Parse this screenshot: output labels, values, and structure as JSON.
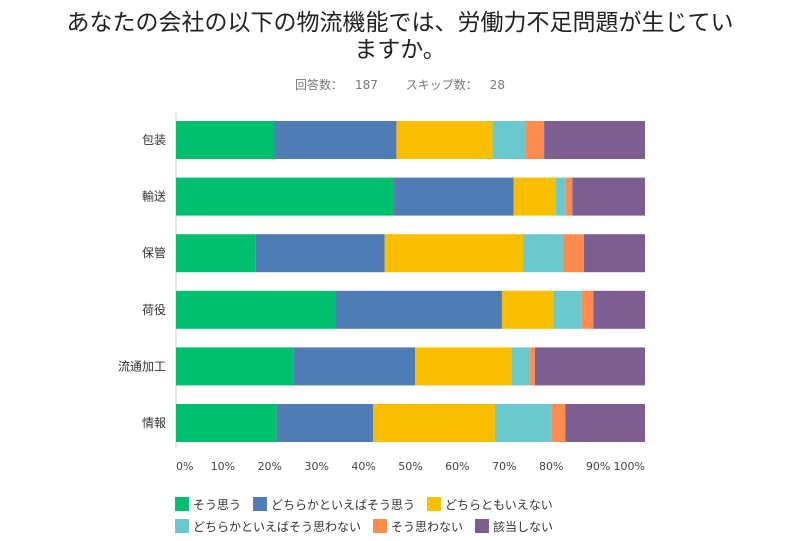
{
  "title_lines": [
    "あなたの会社の以下の物流機能では、労働力不足問題が生じてい",
    "ますか。"
  ],
  "meta": {
    "responses_label": "回答数：",
    "responses": "187",
    "skips_label": "スキップ数：",
    "skips": "28"
  },
  "chart_data": {
    "type": "bar",
    "orientation": "horizontal",
    "stacked": true,
    "percent_stacked": true,
    "categories": [
      "包装",
      "輸送",
      "保管",
      "荷役",
      "流通加工",
      "情報"
    ],
    "series": [
      {
        "name": "そう思う",
        "color": "#00bf6f",
        "values": [
          21,
          46.5,
          17,
          34,
          25,
          21.5
        ]
      },
      {
        "name": "どちらかといえばそう思う",
        "color": "#507cb6",
        "values": [
          26,
          25.5,
          27.5,
          35.5,
          26,
          20.5
        ]
      },
      {
        "name": "どちらともいえない",
        "color": "#f9be00",
        "values": [
          20.5,
          9,
          29.5,
          11,
          20.5,
          26
        ]
      },
      {
        "name": "どちらかといえばそう思わない",
        "color": "#6bc8cd",
        "values": [
          7,
          2,
          8.5,
          6,
          4,
          12
        ]
      },
      {
        "name": "そう思わない",
        "color": "#ff8b4f",
        "values": [
          4,
          1.5,
          4.5,
          2.5,
          1,
          3
        ]
      },
      {
        "name": "該当しない",
        "color": "#7d5e90",
        "values": [
          21.5,
          15.5,
          13,
          11,
          23.5,
          17
        ]
      }
    ],
    "x_ticks": [
      "0%",
      "10%",
      "20%",
      "30%",
      "40%",
      "50%",
      "60%",
      "70%",
      "80%",
      "90%",
      "100%"
    ],
    "xlim": [
      0,
      100
    ],
    "legend_position": "bottom",
    "grid": false
  }
}
